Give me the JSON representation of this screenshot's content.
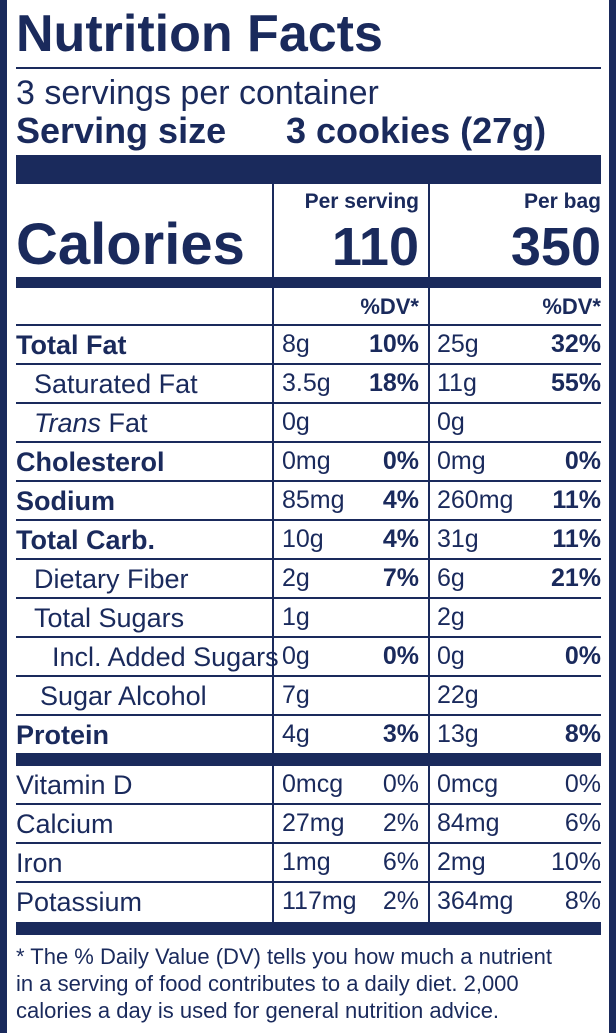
{
  "title": "Nutrition Facts",
  "servings_per_container": "3 servings per container",
  "serving_size_label": "Serving size",
  "serving_size_value": "3 cookies (27g)",
  "col_per_serving": "Per serving",
  "col_per_bag": "Per bag",
  "calories_label": "Calories",
  "calories_per_serving": "110",
  "calories_per_bag": "350",
  "dv_header": "%DV*",
  "nutrients": [
    {
      "name": "Total Fat",
      "ps_amt": "8g",
      "ps_dv": "10%",
      "pb_amt": "25g",
      "pb_dv": "32%"
    },
    {
      "name": "Saturated Fat",
      "ps_amt": "3.5g",
      "ps_dv": "18%",
      "pb_amt": "11g",
      "pb_dv": "55%"
    },
    {
      "name_italic": "Trans",
      "name_rest": " Fat",
      "ps_amt": "0g",
      "ps_dv": "",
      "pb_amt": "0g",
      "pb_dv": ""
    },
    {
      "name": "Cholesterol",
      "ps_amt": "0mg",
      "ps_dv": "0%",
      "pb_amt": "0mg",
      "pb_dv": "0%"
    },
    {
      "name": "Sodium",
      "ps_amt": "85mg",
      "ps_dv": "4%",
      "pb_amt": "260mg",
      "pb_dv": "11%"
    },
    {
      "name": "Total Carb.",
      "ps_amt": "10g",
      "ps_dv": "4%",
      "pb_amt": "31g",
      "pb_dv": "11%"
    },
    {
      "name": "Dietary Fiber",
      "ps_amt": "2g",
      "ps_dv": "7%",
      "pb_amt": "6g",
      "pb_dv": "21%"
    },
    {
      "name": "Total Sugars",
      "ps_amt": "1g",
      "ps_dv": "",
      "pb_amt": "2g",
      "pb_dv": ""
    },
    {
      "name": "Incl. Added Sugars",
      "ps_amt": "0g",
      "ps_dv": "0%",
      "pb_amt": "0g",
      "pb_dv": "0%"
    },
    {
      "name": "Sugar Alcohol",
      "ps_amt": "7g",
      "ps_dv": "",
      "pb_amt": "22g",
      "pb_dv": ""
    },
    {
      "name": "Protein",
      "ps_amt": "4g",
      "ps_dv": "3%",
      "pb_amt": "13g",
      "pb_dv": "8%"
    }
  ],
  "vitamins": [
    {
      "name": "Vitamin D",
      "ps_amt": "0mcg",
      "ps_dv": "0%",
      "pb_amt": "0mcg",
      "pb_dv": "0%"
    },
    {
      "name": "Calcium",
      "ps_amt": "27mg",
      "ps_dv": "2%",
      "pb_amt": "84mg",
      "pb_dv": "6%"
    },
    {
      "name": "Iron",
      "ps_amt": "1mg",
      "ps_dv": "6%",
      "pb_amt": "2mg",
      "pb_dv": "10%"
    },
    {
      "name": "Potassium",
      "ps_amt": "117mg",
      "ps_dv": "2%",
      "pb_amt": "364mg",
      "pb_dv": "8%"
    }
  ],
  "footnote_lines": [
    "* The % Daily Value (DV) tells you how much a nutrient",
    "in a serving of food contributes to a daily diet. 2,000",
    "calories a day is used for general nutrition advice."
  ],
  "colors": {
    "ink": "#1a2a5c",
    "paper": "#ffffff"
  }
}
